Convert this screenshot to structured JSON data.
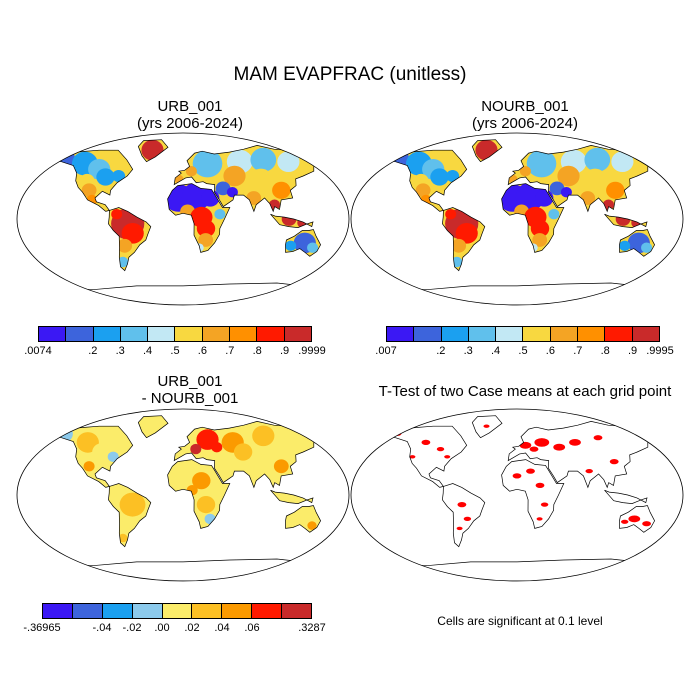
{
  "title": "MAM EVAPFRAC (unitless)",
  "panels": [
    {
      "id": "urb",
      "title_line1": "URB_001",
      "title_line2": "(yrs 2006-2024)",
      "colorbar": {
        "colors": [
          "#3b18f4",
          "#3d64dc",
          "#1ba0f0",
          "#60c0ec",
          "#c2e8f4",
          "#f8d840",
          "#f4a424",
          "#ff9000",
          "#ff1a00",
          "#c92a2a"
        ],
        "labels": [
          ".0074",
          ".2",
          ".3",
          ".4",
          ".5",
          ".6",
          ".7",
          ".8",
          ".9",
          ".9999"
        ]
      }
    },
    {
      "id": "nourb",
      "title_line1": "NOURB_001",
      "title_line2": "(yrs 2006-2024)",
      "colorbar": {
        "colors": [
          "#3b18f4",
          "#3d64dc",
          "#1ba0f0",
          "#60c0ec",
          "#c2e8f4",
          "#f8d840",
          "#f4a424",
          "#ff9000",
          "#ff1a00",
          "#c92a2a"
        ],
        "labels": [
          ".007",
          ".2",
          ".3",
          ".4",
          ".5",
          ".6",
          ".7",
          ".8",
          ".9",
          ".9995"
        ]
      }
    },
    {
      "id": "diff",
      "title_line1": "URB_001",
      "title_line2": "- NOURB_001",
      "colorbar": {
        "colors": [
          "#3b18f4",
          "#3d64dc",
          "#1ba0f0",
          "#8ccaec",
          "#fbec6a",
          "#fcc024",
          "#fb9a00",
          "#ff1a00",
          "#c92a2a"
        ],
        "labels": [
          "-.36965",
          "-.04",
          "-.02",
          ".00",
          ".02",
          ".04",
          ".06",
          ".3287"
        ]
      }
    },
    {
      "id": "ttest",
      "title": "T-Test of two Case means at each grid point",
      "note": "Cells are significant at 0.1 level"
    }
  ]
}
